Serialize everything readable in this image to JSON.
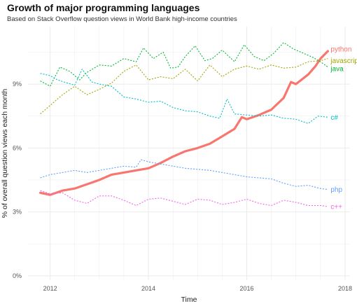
{
  "chart_data": {
    "type": "line",
    "title": "Growth of major programming languages",
    "subtitle": "Based on Stack Overflow question views in World Bank high-income countries",
    "xlabel": "Time",
    "ylabel": "% of overall question views each month",
    "xlim": [
      2011.55,
      2018.1
    ],
    "ylim": [
      -0.2,
      11.7
    ],
    "x_ticks": [
      2012,
      2014,
      2016,
      2018
    ],
    "y_ticks": [
      0,
      3,
      6,
      9
    ],
    "y_tick_labels": [
      "0%",
      "3%",
      "6%",
      "9%"
    ],
    "grid": true,
    "legend": "direct labels at line ends",
    "series": [
      {
        "name": "python",
        "color": "#f8766d",
        "style": "solid",
        "points": [
          [
            2011.8,
            3.9
          ],
          [
            2012.0,
            3.8
          ],
          [
            2012.25,
            4.0
          ],
          [
            2012.5,
            4.1
          ],
          [
            2012.75,
            4.3
          ],
          [
            2013.0,
            4.5
          ],
          [
            2013.25,
            4.75
          ],
          [
            2013.5,
            4.85
          ],
          [
            2013.75,
            4.95
          ],
          [
            2014.0,
            5.05
          ],
          [
            2014.25,
            5.3
          ],
          [
            2014.5,
            5.6
          ],
          [
            2014.75,
            5.85
          ],
          [
            2015.0,
            6.0
          ],
          [
            2015.25,
            6.2
          ],
          [
            2015.5,
            6.55
          ],
          [
            2015.75,
            6.9
          ],
          [
            2015.9,
            7.45
          ],
          [
            2016.0,
            7.35
          ],
          [
            2016.25,
            7.55
          ],
          [
            2016.5,
            7.8
          ],
          [
            2016.75,
            8.35
          ],
          [
            2016.9,
            9.1
          ],
          [
            2017.0,
            9.0
          ],
          [
            2017.25,
            9.45
          ],
          [
            2017.4,
            9.85
          ],
          [
            2017.5,
            10.2
          ],
          [
            2017.65,
            10.55
          ]
        ]
      },
      {
        "name": "javascript",
        "color": "#a3a500",
        "style": "dotted",
        "points": [
          [
            2011.8,
            7.6
          ],
          [
            2012.0,
            8.0
          ],
          [
            2012.25,
            8.5
          ],
          [
            2012.5,
            8.9
          ],
          [
            2012.75,
            8.5
          ],
          [
            2013.0,
            8.75
          ],
          [
            2013.25,
            9.05
          ],
          [
            2013.5,
            9.6
          ],
          [
            2013.75,
            9.9
          ],
          [
            2014.0,
            9.2
          ],
          [
            2014.25,
            9.35
          ],
          [
            2014.5,
            9.25
          ],
          [
            2014.75,
            9.7
          ],
          [
            2015.0,
            9.15
          ],
          [
            2015.25,
            9.9
          ],
          [
            2015.5,
            9.35
          ],
          [
            2015.75,
            9.7
          ],
          [
            2016.0,
            9.85
          ],
          [
            2016.25,
            9.7
          ],
          [
            2016.5,
            9.9
          ],
          [
            2016.75,
            9.75
          ],
          [
            2017.0,
            9.8
          ],
          [
            2017.25,
            10.05
          ],
          [
            2017.5,
            10.1
          ],
          [
            2017.65,
            10.2
          ]
        ]
      },
      {
        "name": "java",
        "color": "#00ba38",
        "style": "dotted",
        "points": [
          [
            2011.8,
            9.15
          ],
          [
            2012.0,
            8.9
          ],
          [
            2012.2,
            9.8
          ],
          [
            2012.4,
            9.6
          ],
          [
            2012.6,
            9.2
          ],
          [
            2012.75,
            9.55
          ],
          [
            2013.0,
            9.9
          ],
          [
            2013.25,
            9.85
          ],
          [
            2013.5,
            10.2
          ],
          [
            2013.75,
            10.05
          ],
          [
            2013.9,
            10.7
          ],
          [
            2014.1,
            10.2
          ],
          [
            2014.3,
            10.5
          ],
          [
            2014.45,
            9.75
          ],
          [
            2014.6,
            9.8
          ],
          [
            2014.75,
            10.3
          ],
          [
            2014.95,
            10.8
          ],
          [
            2015.15,
            10.1
          ],
          [
            2015.3,
            10.2
          ],
          [
            2015.5,
            10.6
          ],
          [
            2015.75,
            10.05
          ],
          [
            2015.95,
            10.85
          ],
          [
            2016.15,
            10.3
          ],
          [
            2016.35,
            10.1
          ],
          [
            2016.55,
            10.45
          ],
          [
            2016.75,
            10.95
          ],
          [
            2016.95,
            10.65
          ],
          [
            2017.15,
            10.45
          ],
          [
            2017.35,
            10.25
          ],
          [
            2017.5,
            10.05
          ],
          [
            2017.65,
            9.8
          ]
        ]
      },
      {
        "name": "c#",
        "color": "#00bfc4",
        "style": "dotted",
        "points": [
          [
            2011.8,
            9.5
          ],
          [
            2012.0,
            9.4
          ],
          [
            2012.15,
            9.2
          ],
          [
            2012.35,
            9.05
          ],
          [
            2012.5,
            8.95
          ],
          [
            2012.65,
            9.7
          ],
          [
            2012.85,
            9.1
          ],
          [
            2013.0,
            9.0
          ],
          [
            2013.25,
            8.9
          ],
          [
            2013.5,
            8.4
          ],
          [
            2013.75,
            8.3
          ],
          [
            2014.0,
            8.15
          ],
          [
            2014.25,
            8.2
          ],
          [
            2014.5,
            7.9
          ],
          [
            2014.75,
            7.75
          ],
          [
            2015.0,
            7.7
          ],
          [
            2015.25,
            7.5
          ],
          [
            2015.45,
            7.4
          ],
          [
            2015.6,
            8.3
          ],
          [
            2015.75,
            7.6
          ],
          [
            2016.0,
            7.55
          ],
          [
            2016.25,
            7.5
          ],
          [
            2016.5,
            7.55
          ],
          [
            2016.75,
            7.4
          ],
          [
            2017.0,
            7.35
          ],
          [
            2017.25,
            7.15
          ],
          [
            2017.45,
            7.5
          ],
          [
            2017.65,
            7.45
          ]
        ]
      },
      {
        "name": "php",
        "color": "#619cff",
        "style": "dotted",
        "points": [
          [
            2011.8,
            4.6
          ],
          [
            2012.0,
            4.75
          ],
          [
            2012.25,
            4.85
          ],
          [
            2012.5,
            4.95
          ],
          [
            2012.75,
            4.85
          ],
          [
            2013.0,
            4.95
          ],
          [
            2013.25,
            5.05
          ],
          [
            2013.5,
            5.15
          ],
          [
            2013.75,
            5.1
          ],
          [
            2013.85,
            5.45
          ],
          [
            2014.0,
            5.35
          ],
          [
            2014.25,
            5.25
          ],
          [
            2014.5,
            5.15
          ],
          [
            2014.75,
            5.05
          ],
          [
            2015.0,
            5.0
          ],
          [
            2015.25,
            4.95
          ],
          [
            2015.5,
            4.85
          ],
          [
            2015.75,
            4.75
          ],
          [
            2016.0,
            4.65
          ],
          [
            2016.25,
            4.6
          ],
          [
            2016.5,
            4.55
          ],
          [
            2016.75,
            4.35
          ],
          [
            2017.0,
            4.2
          ],
          [
            2017.25,
            4.25
          ],
          [
            2017.5,
            4.1
          ],
          [
            2017.65,
            4.05
          ]
        ]
      },
      {
        "name": "c++",
        "color": "#f564e3",
        "style": "dotted",
        "points": [
          [
            2011.8,
            4.0
          ],
          [
            2012.0,
            3.85
          ],
          [
            2012.25,
            3.9
          ],
          [
            2012.5,
            3.55
          ],
          [
            2012.75,
            3.4
          ],
          [
            2013.0,
            3.75
          ],
          [
            2013.25,
            3.75
          ],
          [
            2013.5,
            3.55
          ],
          [
            2013.75,
            3.3
          ],
          [
            2014.0,
            3.6
          ],
          [
            2014.25,
            3.65
          ],
          [
            2014.5,
            3.5
          ],
          [
            2014.75,
            3.35
          ],
          [
            2015.0,
            3.6
          ],
          [
            2015.25,
            3.55
          ],
          [
            2015.5,
            3.35
          ],
          [
            2015.75,
            3.45
          ],
          [
            2016.0,
            3.6
          ],
          [
            2016.25,
            3.4
          ],
          [
            2016.5,
            3.3
          ],
          [
            2016.75,
            3.55
          ],
          [
            2017.0,
            3.45
          ],
          [
            2017.25,
            3.3
          ],
          [
            2017.5,
            3.3
          ],
          [
            2017.65,
            3.25
          ]
        ]
      }
    ]
  }
}
